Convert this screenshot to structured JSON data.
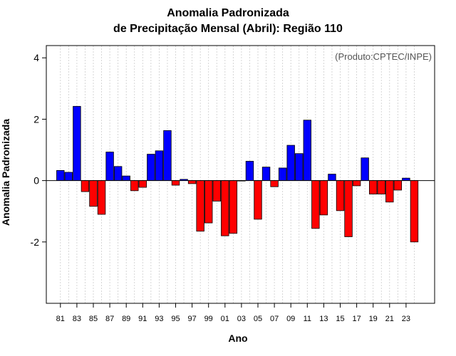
{
  "chart_data": {
    "type": "bar",
    "title": "Anomalia Padronizada",
    "subtitle": "de Precipitação Mensal (Abril): Região 110",
    "xlabel": "Ano",
    "ylabel": "Anomalia Padronizada",
    "credit": "(Produto:CPTEC/INPE)",
    "ylim": [
      -4,
      4.4
    ],
    "yticks": [
      -2,
      0,
      2,
      4
    ],
    "categories": [
      "81",
      "82",
      "83",
      "84",
      "85",
      "86",
      "87",
      "88",
      "89",
      "90",
      "91",
      "92",
      "93",
      "94",
      "95",
      "96",
      "97",
      "98",
      "99",
      "00",
      "01",
      "02",
      "03",
      "04",
      "05",
      "06",
      "07",
      "08",
      "09",
      "10",
      "11",
      "12",
      "13",
      "14",
      "15",
      "16",
      "17",
      "18",
      "19",
      "20",
      "21",
      "22",
      "23",
      "24"
    ],
    "xtick_labels": [
      "81",
      "83",
      "85",
      "87",
      "89",
      "91",
      "93",
      "95",
      "97",
      "99",
      "01",
      "03",
      "05",
      "07",
      "09",
      "11",
      "13",
      "15",
      "17",
      "19",
      "21",
      "23"
    ],
    "values": [
      0.33,
      0.27,
      2.42,
      -0.36,
      -0.84,
      -1.1,
      0.93,
      0.46,
      0.15,
      -0.33,
      -0.22,
      0.86,
      0.97,
      1.63,
      -0.15,
      0.04,
      -0.1,
      -1.65,
      -1.38,
      -0.67,
      -1.8,
      -1.72,
      0.0,
      0.63,
      -1.26,
      0.44,
      -0.2,
      0.41,
      1.15,
      0.88,
      1.97,
      -1.56,
      -1.12,
      0.21,
      -0.98,
      -1.83,
      -0.17,
      0.74,
      -0.44,
      -0.44,
      -0.7,
      -0.31,
      0.08,
      -2.0
    ],
    "colors": {
      "positive": "#0000ff",
      "negative": "#ff0000",
      "zero_line": "#000000",
      "grid": "#cccccc"
    },
    "grid": true
  }
}
